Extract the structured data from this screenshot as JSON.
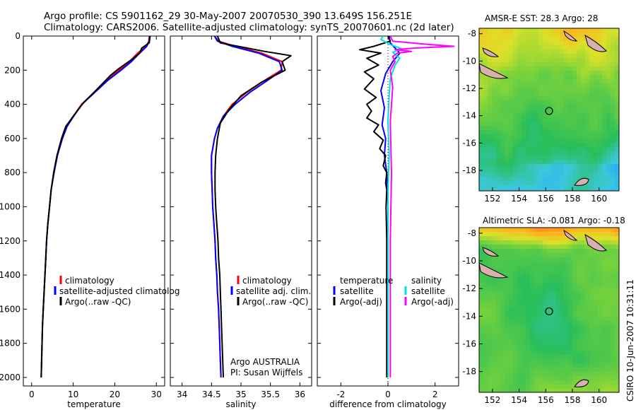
{
  "title": {
    "line1": "Argo profile: CS 5901162_29 30-May-2007 20070530_390 13.649S 156.251E",
    "line2": "Climatology: CARS2006. Satellite-adjusted climatology: synTS_20070601.nc (2d later)"
  },
  "side_stamp": "CSIRO 10-Jun-2007 10:31:11",
  "colors": {
    "climatology": "#ff0000",
    "satellite": "#0000ff",
    "argo": "#000000",
    "cyan": "#00e0e0",
    "magenta": "#ff00ff"
  },
  "chart_data": [
    {
      "type": "line",
      "xlabel": "temperature",
      "xticks": [
        "0",
        "10",
        "20",
        "30"
      ],
      "xlim": [
        -2,
        32
      ],
      "ylim": [
        0,
        2050
      ],
      "yticks": [
        "0",
        "200",
        "400",
        "600",
        "800",
        "1000",
        "1200",
        "1400",
        "1600",
        "1800",
        "2000"
      ],
      "y_reversed": true,
      "legend": [
        "climatology",
        "satellite-adjusted climatolog",
        "Argo(..raw -QC)"
      ],
      "series": [
        {
          "name": "climatology",
          "color": "#ff0000",
          "points": [
            [
              28.3,
              0
            ],
            [
              28.2,
              30
            ],
            [
              27.5,
              60
            ],
            [
              25.5,
              100
            ],
            [
              23.5,
              150
            ],
            [
              21,
              200
            ],
            [
              18,
              260
            ],
            [
              15,
              330
            ],
            [
              12,
              400
            ],
            [
              10,
              470
            ],
            [
              8.5,
              530
            ],
            [
              7.4,
              600
            ],
            [
              6.2,
              700
            ],
            [
              5.4,
              800
            ],
            [
              4.7,
              900
            ],
            [
              4.3,
              1000
            ],
            [
              3.9,
              1100
            ],
            [
              3.6,
              1200
            ],
            [
              3.4,
              1300
            ],
            [
              3.2,
              1400
            ],
            [
              3.0,
              1500
            ],
            [
              2.8,
              1600
            ],
            [
              2.6,
              1700
            ],
            [
              2.5,
              1800
            ],
            [
              2.4,
              1900
            ],
            [
              2.3,
              2000
            ]
          ]
        },
        {
          "name": "satellite-adjusted climatolog",
          "color": "#0000ff",
          "points": [
            [
              28.4,
              0
            ],
            [
              28.3,
              30
            ],
            [
              27.7,
              60
            ],
            [
              26,
              100
            ],
            [
              24,
              150
            ],
            [
              21.5,
              200
            ],
            [
              18.3,
              260
            ],
            [
              15.2,
              330
            ],
            [
              12.1,
              400
            ],
            [
              10.1,
              470
            ],
            [
              8.5,
              530
            ],
            [
              7.4,
              600
            ],
            [
              6.2,
              700
            ],
            [
              5.4,
              800
            ],
            [
              4.7,
              900
            ],
            [
              4.3,
              1000
            ],
            [
              3.9,
              1100
            ],
            [
              3.6,
              1200
            ],
            [
              3.4,
              1300
            ],
            [
              3.2,
              1400
            ],
            [
              3.0,
              1500
            ],
            [
              2.8,
              1600
            ],
            [
              2.6,
              1700
            ],
            [
              2.5,
              1800
            ],
            [
              2.4,
              1900
            ],
            [
              2.3,
              2000
            ]
          ]
        },
        {
          "name": "Argo(..raw -QC)",
          "color": "#000000",
          "points": [
            [
              28.5,
              0
            ],
            [
              28.3,
              40
            ],
            [
              26.5,
              70
            ],
            [
              26,
              100
            ],
            [
              24.5,
              130
            ],
            [
              21,
              190
            ],
            [
              19,
              230
            ],
            [
              15,
              330
            ],
            [
              12.5,
              390
            ],
            [
              10,
              470
            ],
            [
              8.2,
              530
            ],
            [
              7.2,
              600
            ],
            [
              6.1,
              700
            ],
            [
              5.3,
              800
            ],
            [
              4.7,
              900
            ],
            [
              4.3,
              1000
            ],
            [
              3.9,
              1100
            ],
            [
              3.6,
              1200
            ],
            [
              3.4,
              1300
            ],
            [
              3.2,
              1400
            ],
            [
              3.0,
              1500
            ],
            [
              2.8,
              1600
            ],
            [
              2.6,
              1700
            ],
            [
              2.5,
              1800
            ],
            [
              2.4,
              1900
            ],
            [
              2.3,
              2000
            ]
          ]
        }
      ]
    },
    {
      "type": "line",
      "xlabel": "salinity",
      "xticks": [
        "34",
        "34.5",
        "35",
        "35.5",
        "36"
      ],
      "xlim": [
        33.8,
        36.2
      ],
      "ylim": [
        0,
        2050
      ],
      "y_reversed": true,
      "legend": [
        "climatology",
        "satellite adj. clim.",
        "Argo(..raw -QC)"
      ],
      "annotation": [
        "Argo AUSTRALIA",
        "PI: Susan Wijffels"
      ],
      "series": [
        {
          "name": "climatology",
          "color": "#ff0000",
          "points": [
            [
              34.55,
              0
            ],
            [
              34.62,
              30
            ],
            [
              34.9,
              60
            ],
            [
              35.35,
              100
            ],
            [
              35.7,
              150
            ],
            [
              35.68,
              200
            ],
            [
              35.4,
              260
            ],
            [
              35.1,
              330
            ],
            [
              34.85,
              400
            ],
            [
              34.7,
              470
            ],
            [
              34.6,
              540
            ],
            [
              34.55,
              600
            ],
            [
              34.5,
              700
            ],
            [
              34.5,
              800
            ],
            [
              34.51,
              900
            ],
            [
              34.52,
              1000
            ],
            [
              34.54,
              1100
            ],
            [
              34.56,
              1200
            ],
            [
              34.57,
              1300
            ],
            [
              34.59,
              1400
            ],
            [
              34.6,
              1500
            ],
            [
              34.62,
              1600
            ],
            [
              34.63,
              1700
            ],
            [
              34.64,
              1800
            ],
            [
              34.65,
              1900
            ],
            [
              34.66,
              2000
            ]
          ]
        },
        {
          "name": "satellite adj. clim.",
          "color": "#0000ff",
          "points": [
            [
              34.55,
              0
            ],
            [
              34.6,
              30
            ],
            [
              34.85,
              60
            ],
            [
              35.3,
              100
            ],
            [
              35.65,
              150
            ],
            [
              35.7,
              200
            ],
            [
              35.45,
              260
            ],
            [
              35.15,
              330
            ],
            [
              34.9,
              400
            ],
            [
              34.7,
              470
            ],
            [
              34.6,
              540
            ],
            [
              34.55,
              600
            ],
            [
              34.5,
              700
            ],
            [
              34.5,
              800
            ],
            [
              34.51,
              900
            ],
            [
              34.52,
              1000
            ],
            [
              34.54,
              1100
            ],
            [
              34.56,
              1200
            ],
            [
              34.57,
              1300
            ],
            [
              34.59,
              1400
            ],
            [
              34.6,
              1500
            ],
            [
              34.62,
              1600
            ],
            [
              34.63,
              1700
            ],
            [
              34.64,
              1800
            ],
            [
              34.65,
              1900
            ],
            [
              34.66,
              2000
            ]
          ]
        },
        {
          "name": "Argo(..raw -QC)",
          "color": "#000000",
          "points": [
            [
              34.6,
              0
            ],
            [
              34.65,
              40
            ],
            [
              35.1,
              70
            ],
            [
              35.4,
              90
            ],
            [
              35.85,
              115
            ],
            [
              35.7,
              150
            ],
            [
              35.75,
              200
            ],
            [
              35.35,
              270
            ],
            [
              35.0,
              350
            ],
            [
              34.8,
              430
            ],
            [
              34.65,
              510
            ],
            [
              34.6,
              600
            ],
            [
              34.57,
              700
            ],
            [
              34.56,
              800
            ],
            [
              34.56,
              900
            ],
            [
              34.57,
              1000
            ],
            [
              34.59,
              1100
            ],
            [
              34.61,
              1200
            ],
            [
              34.62,
              1300
            ],
            [
              34.64,
              1400
            ],
            [
              34.65,
              1500
            ],
            [
              34.66,
              1600
            ],
            [
              34.67,
              1700
            ],
            [
              34.68,
              1800
            ],
            [
              34.69,
              1900
            ],
            [
              34.7,
              2000
            ]
          ]
        }
      ]
    },
    {
      "type": "line",
      "xlabel": "difference from climatology",
      "xticks": [
        "-2",
        "0",
        "2"
      ],
      "xlim": [
        -3,
        3
      ],
      "ylim": [
        0,
        2050
      ],
      "y_reversed": true,
      "legend_left_title": "temperature",
      "legend_right_title": "salinity",
      "legend": [
        "satellite",
        "Argo(-adj)",
        "satellite",
        "Argo(-adj)"
      ],
      "series": [
        {
          "name": "temperature satellite",
          "color": "#0000ff",
          "points": [
            [
              0.05,
              0
            ],
            [
              0.1,
              40
            ],
            [
              0.3,
              70
            ],
            [
              0.5,
              100
            ],
            [
              0.2,
              150
            ],
            [
              -0.1,
              220
            ],
            [
              -0.3,
              320
            ],
            [
              -0.15,
              420
            ],
            [
              -0.25,
              520
            ],
            [
              -0.1,
              600
            ],
            [
              -0.15,
              700
            ],
            [
              -0.05,
              800
            ],
            [
              -0.02,
              900
            ],
            [
              0,
              1000
            ],
            [
              0,
              2000
            ]
          ]
        },
        {
          "name": "temperature Argo(-adj)",
          "color": "#000000",
          "points": [
            [
              0,
              0
            ],
            [
              0.1,
              30
            ],
            [
              -0.6,
              60
            ],
            [
              -1.2,
              80
            ],
            [
              -0.3,
              100
            ],
            [
              -0.9,
              130
            ],
            [
              -0.4,
              170
            ],
            [
              -1.0,
              210
            ],
            [
              -0.6,
              250
            ],
            [
              -1.0,
              310
            ],
            [
              -0.5,
              360
            ],
            [
              -0.9,
              400
            ],
            [
              -0.7,
              440
            ],
            [
              -0.9,
              480
            ],
            [
              -0.4,
              520
            ],
            [
              -0.6,
              560
            ],
            [
              -0.2,
              610
            ],
            [
              -0.35,
              660
            ],
            [
              -0.1,
              700
            ],
            [
              -0.2,
              760
            ],
            [
              -0.05,
              800
            ],
            [
              -0.1,
              860
            ],
            [
              -0.05,
              900
            ],
            [
              -0.08,
              1000
            ],
            [
              -0.05,
              1200
            ],
            [
              -0.05,
              1500
            ],
            [
              -0.05,
              1800
            ],
            [
              -0.05,
              2000
            ]
          ]
        },
        {
          "name": "salinity satellite",
          "color": "#00e0e0",
          "points": [
            [
              -0.2,
              0
            ],
            [
              -0.3,
              20
            ],
            [
              0.1,
              50
            ],
            [
              0.6,
              75
            ],
            [
              0.2,
              95
            ],
            [
              0.5,
              130
            ],
            [
              0.3,
              170
            ],
            [
              0.1,
              250
            ],
            [
              0.05,
              350
            ],
            [
              0.0,
              500
            ],
            [
              0.05,
              700
            ],
            [
              0,
              900
            ],
            [
              0,
              2000
            ]
          ]
        },
        {
          "name": "salinity Argo(-adj)",
          "color": "#ff00ff",
          "points": [
            [
              0.1,
              0
            ],
            [
              0.2,
              30
            ],
            [
              1.8,
              50
            ],
            [
              2.8,
              60
            ],
            [
              1.2,
              70
            ],
            [
              0.3,
              80
            ],
            [
              1.0,
              90
            ],
            [
              0.4,
              100
            ],
            [
              0.2,
              120
            ],
            [
              0.3,
              150
            ],
            [
              0.1,
              200
            ],
            [
              0.2,
              300
            ],
            [
              0.1,
              500
            ],
            [
              0.15,
              800
            ],
            [
              0.1,
              1200
            ],
            [
              0.1,
              1600
            ],
            [
              0.1,
              2000
            ]
          ]
        }
      ]
    },
    {
      "type": "heatmap",
      "title": "AMSR-E SST: 28.3  Argo: 28",
      "xticks": [
        "152",
        "154",
        "156",
        "158",
        "160"
      ],
      "yticks": [
        "-8",
        "-10",
        "-12",
        "-14",
        "-16",
        "-18"
      ],
      "xlim": [
        151,
        161.5
      ],
      "ylim": [
        -19.5,
        -7.6
      ],
      "marker": {
        "lon": 156.25,
        "lat": -13.65
      }
    },
    {
      "type": "heatmap",
      "title": "Altimetric SLA: -0.081  Argo: -0.18",
      "xticks": [
        "152",
        "154",
        "156",
        "158",
        "160"
      ],
      "yticks": [
        "-8",
        "-10",
        "-12",
        "-14",
        "-16",
        "-18"
      ],
      "xlim": [
        151,
        161.5
      ],
      "ylim": [
        -19.5,
        -7.6
      ],
      "marker": {
        "lon": 156.25,
        "lat": -13.65
      }
    }
  ]
}
